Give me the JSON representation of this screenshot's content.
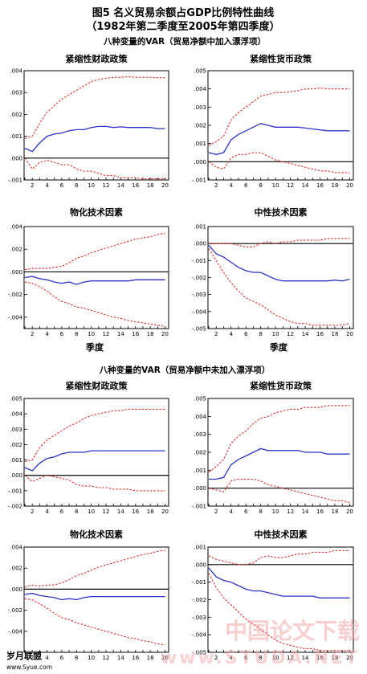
{
  "figure": {
    "title": "图5   名义贸易余额占GDP比例特性曲线",
    "subtitle": "（1982年第二季度至2005年第四季度）",
    "section1_title": "八种变量的VAR（贸易净额中加入漂浮项）",
    "section2_title": "八种变量的VAR（贸易净额中未加入漂浮项）",
    "xaxis_label": "季度",
    "watermark_left": "岁月联盟",
    "watermark_left_url": "www.Syue.com",
    "watermark_right": "中国论文下载",
    "watermark_right_url": "www.STUDA.NET"
  },
  "colors": {
    "response": "#2a34c8",
    "band": "#e0302a",
    "axis": "#000000",
    "zero": "#000000"
  },
  "chart_data": [
    {
      "type": "line",
      "title": "紧缩性财政政策",
      "xlabel": "",
      "x": [
        1,
        2,
        3,
        4,
        5,
        6,
        7,
        8,
        9,
        10,
        11,
        12,
        13,
        14,
        15,
        16,
        17,
        18,
        19,
        20
      ],
      "xticks": [
        "2",
        "4",
        "6",
        "8",
        "10",
        "12",
        "14",
        "16",
        "18",
        "20"
      ],
      "ylim": [
        -0.001,
        0.004
      ],
      "yticks": [
        ".004",
        ".003",
        ".002",
        ".001",
        ".000",
        "-.001"
      ],
      "series": [
        {
          "role": "response",
          "values": [
            0.00045,
            0.0003,
            0.0007,
            0.001,
            0.0011,
            0.00115,
            0.00125,
            0.0013,
            0.0013,
            0.0014,
            0.00145,
            0.00145,
            0.0014,
            0.00143,
            0.0014,
            0.0014,
            0.0014,
            0.0014,
            0.00135,
            0.00135
          ]
        },
        {
          "role": "upper",
          "values": [
            0.0009,
            0.001,
            0.0016,
            0.0021,
            0.0024,
            0.0027,
            0.0029,
            0.0031,
            0.0033,
            0.0035,
            0.0036,
            0.00365,
            0.0037,
            0.0037,
            0.00372,
            0.0037,
            0.0037,
            0.0037,
            0.00368,
            0.00368
          ]
        },
        {
          "role": "lower",
          "values": [
            0.0,
            -0.0005,
            -0.0002,
            -0.0001,
            -0.0002,
            -0.0003,
            -0.0003,
            -0.0005,
            -0.0006,
            -0.0006,
            -0.0007,
            -0.0008,
            -0.0008,
            -0.0009,
            -0.0009,
            -0.0009,
            -0.00095,
            -0.00095,
            -0.00095,
            -0.00095
          ]
        }
      ]
    },
    {
      "type": "line",
      "title": "紧缩性货币政策",
      "xlabel": "",
      "x": [
        1,
        2,
        3,
        4,
        5,
        6,
        7,
        8,
        9,
        10,
        11,
        12,
        13,
        14,
        15,
        16,
        17,
        18,
        19,
        20
      ],
      "xticks": [
        "2",
        "4",
        "6",
        "8",
        "10",
        "12",
        "14",
        "16",
        "18",
        "20"
      ],
      "ylim": [
        -0.001,
        0.005
      ],
      "yticks": [
        ".005",
        ".004",
        ".003",
        ".002",
        ".001",
        ".000",
        "-.001"
      ],
      "series": [
        {
          "role": "response",
          "values": [
            0.0005,
            0.0004,
            0.0005,
            0.0012,
            0.0015,
            0.0017,
            0.0019,
            0.0021,
            0.002,
            0.0019,
            0.0019,
            0.0019,
            0.0019,
            0.00185,
            0.0018,
            0.00175,
            0.0017,
            0.0017,
            0.0017,
            0.0017
          ]
        },
        {
          "role": "upper",
          "values": [
            0.0009,
            0.0011,
            0.0014,
            0.0023,
            0.0027,
            0.003,
            0.0033,
            0.0036,
            0.0037,
            0.0038,
            0.0038,
            0.00385,
            0.0039,
            0.004,
            0.004,
            0.00405,
            0.004,
            0.004,
            0.004,
            0.004
          ]
        },
        {
          "role": "lower",
          "values": [
            0.0,
            -0.0003,
            -0.0004,
            0.0002,
            0.0004,
            0.0004,
            0.0005,
            0.0005,
            0.0003,
            0.0001,
            0.0,
            -0.0001,
            -0.0002,
            -0.0003,
            -0.0004,
            -0.0005,
            -0.0005,
            -0.0006,
            -0.0006,
            -0.0006
          ]
        }
      ]
    },
    {
      "type": "line",
      "title": "物化技术因素",
      "xlabel": "季度",
      "x": [
        1,
        2,
        3,
        4,
        5,
        6,
        7,
        8,
        9,
        10,
        11,
        12,
        13,
        14,
        15,
        16,
        17,
        18,
        19,
        20
      ],
      "xticks": [
        "2",
        "4",
        "6",
        "8",
        "10",
        "12",
        "14",
        "16",
        "18",
        "20"
      ],
      "ylim": [
        -0.005,
        0.004
      ],
      "yticks": [
        ".004",
        ".002",
        ".000",
        "-.002",
        "-.004"
      ],
      "series": [
        {
          "role": "response",
          "values": [
            -0.0005,
            -0.0004,
            -0.0006,
            -0.0007,
            -0.0009,
            -0.001,
            -0.0009,
            -0.0011,
            -0.0009,
            -0.0008,
            -0.0008,
            -0.0008,
            -0.0008,
            -0.0008,
            -0.0008,
            -0.0007,
            -0.0007,
            -0.0007,
            -0.0007,
            -0.0007
          ]
        },
        {
          "role": "upper",
          "values": [
            0.0002,
            0.0003,
            0.0003,
            0.0003,
            0.0004,
            0.0005,
            0.0008,
            0.0012,
            0.0014,
            0.0017,
            0.0019,
            0.0021,
            0.0023,
            0.0025,
            0.0027,
            0.0029,
            0.003,
            0.0031,
            0.0033,
            0.0034
          ]
        },
        {
          "role": "lower",
          "values": [
            -0.0009,
            -0.001,
            -0.0013,
            -0.0017,
            -0.0022,
            -0.0026,
            -0.0028,
            -0.0031,
            -0.0032,
            -0.0034,
            -0.0036,
            -0.0038,
            -0.004,
            -0.0041,
            -0.0043,
            -0.0044,
            -0.0045,
            -0.0046,
            -0.0047,
            -0.0048
          ]
        }
      ]
    },
    {
      "type": "line",
      "title": "中性技术因素",
      "xlabel": "季度",
      "x": [
        1,
        2,
        3,
        4,
        5,
        6,
        7,
        8,
        9,
        10,
        11,
        12,
        13,
        14,
        15,
        16,
        17,
        18,
        19,
        20
      ],
      "xticks": [
        "2",
        "4",
        "6",
        "8",
        "10",
        "12",
        "14",
        "16",
        "18",
        "20"
      ],
      "ylim": [
        -0.005,
        0.001
      ],
      "yticks": [
        ".001",
        ".000",
        "-.001",
        "-.002",
        "-.003",
        "-.004",
        "-.005"
      ],
      "series": [
        {
          "role": "response",
          "values": [
            -0.0001,
            -0.0006,
            -0.0008,
            -0.0011,
            -0.0014,
            -0.0016,
            -0.0017,
            -0.0017,
            -0.0019,
            -0.0021,
            -0.0022,
            -0.0022,
            -0.0022,
            -0.0022,
            -0.0022,
            -0.0022,
            -0.0022,
            -0.00215,
            -0.0022,
            -0.0021
          ]
        },
        {
          "role": "upper",
          "values": [
            0.0,
            0.0,
            0.0,
            0.0,
            -0.0001,
            -0.0002,
            -0.0002,
            0.0,
            0.0001,
            0.0,
            0.0001,
            0.0001,
            0.0002,
            0.0002,
            0.0002,
            0.0002,
            0.0003,
            0.0003,
            0.0003,
            0.0003
          ]
        },
        {
          "role": "lower",
          "values": [
            -0.0003,
            -0.001,
            -0.0017,
            -0.0023,
            -0.0028,
            -0.0032,
            -0.0034,
            -0.0036,
            -0.0039,
            -0.0042,
            -0.0044,
            -0.0046,
            -0.0047,
            -0.0047,
            -0.0048,
            -0.0048,
            -0.0048,
            -0.0048,
            -0.0048,
            -0.0047
          ]
        }
      ]
    },
    {
      "type": "line",
      "title": "紧缩性财政政策",
      "xlabel": "",
      "x": [
        1,
        2,
        3,
        4,
        5,
        6,
        7,
        8,
        9,
        10,
        11,
        12,
        13,
        14,
        15,
        16,
        17,
        18,
        19,
        20
      ],
      "xticks": [
        "2",
        "4",
        "6",
        "8",
        "10",
        "12",
        "14",
        "16",
        "18",
        "20"
      ],
      "ylim": [
        -0.002,
        0.005
      ],
      "yticks": [
        ".005",
        ".004",
        ".003",
        ".002",
        ".001",
        ".000",
        "-.001",
        "-.002"
      ],
      "series": [
        {
          "role": "response",
          "values": [
            0.0005,
            0.0003,
            0.0008,
            0.0011,
            0.0012,
            0.0014,
            0.0015,
            0.0015,
            0.0015,
            0.0016,
            0.0016,
            0.0016,
            0.0016,
            0.0016,
            0.0016,
            0.0016,
            0.0016,
            0.0016,
            0.0016,
            0.0016
          ]
        },
        {
          "role": "upper",
          "values": [
            0.0009,
            0.001,
            0.0018,
            0.0023,
            0.0026,
            0.0029,
            0.0032,
            0.0034,
            0.0037,
            0.0039,
            0.004,
            0.0041,
            0.0042,
            0.0042,
            0.0043,
            0.0043,
            0.0043,
            0.0043,
            0.0043,
            0.0043
          ]
        },
        {
          "role": "lower",
          "values": [
            0.0,
            -0.0004,
            -0.0002,
            0.0,
            -0.0001,
            -0.0002,
            -0.0003,
            -0.0006,
            -0.0007,
            -0.0007,
            -0.0008,
            -0.0008,
            -0.0009,
            -0.0009,
            -0.0009,
            -0.001,
            -0.001,
            -0.001,
            -0.001,
            -0.001
          ]
        }
      ]
    },
    {
      "type": "line",
      "title": "紧缩性货币政策",
      "xlabel": "",
      "x": [
        1,
        2,
        3,
        4,
        5,
        6,
        7,
        8,
        9,
        10,
        11,
        12,
        13,
        14,
        15,
        16,
        17,
        18,
        19,
        20
      ],
      "xticks": [
        "2",
        "4",
        "6",
        "8",
        "10",
        "12",
        "14",
        "16",
        "18",
        "20"
      ],
      "ylim": [
        -0.001,
        0.005
      ],
      "yticks": [
        ".005",
        ".004",
        ".003",
        ".002",
        ".001",
        ".000",
        "-.001"
      ],
      "series": [
        {
          "role": "response",
          "values": [
            0.0005,
            0.0005,
            0.0006,
            0.0013,
            0.0016,
            0.0018,
            0.002,
            0.0022,
            0.0021,
            0.0021,
            0.0021,
            0.0021,
            0.0021,
            0.002,
            0.002,
            0.002,
            0.0019,
            0.0019,
            0.0019,
            0.0019
          ]
        },
        {
          "role": "upper",
          "values": [
            0.0009,
            0.0012,
            0.0016,
            0.0025,
            0.0029,
            0.0032,
            0.0036,
            0.0039,
            0.004,
            0.0042,
            0.0043,
            0.0044,
            0.0044,
            0.0045,
            0.0045,
            0.0045,
            0.0046,
            0.0046,
            0.0046,
            0.0046
          ]
        },
        {
          "role": "lower",
          "values": [
            0.0,
            -0.0001,
            -0.0002,
            0.0004,
            0.0005,
            0.0005,
            0.0005,
            0.0004,
            0.0002,
            0.0001,
            0.0,
            -0.0001,
            -0.0002,
            -0.0003,
            -0.0004,
            -0.0005,
            -0.0006,
            -0.0007,
            -0.0007,
            -0.0008
          ]
        }
      ]
    },
    {
      "type": "line",
      "title": "物化技术因素",
      "xlabel": "",
      "x": [
        1,
        2,
        3,
        4,
        5,
        6,
        7,
        8,
        9,
        10,
        11,
        12,
        13,
        14,
        15,
        16,
        17,
        18,
        19,
        20
      ],
      "xticks": [
        "2",
        "4",
        "6",
        "8",
        "10",
        "12",
        "14",
        "16",
        "18",
        "20"
      ],
      "ylim": [
        -0.006,
        0.004
      ],
      "yticks": [
        ".004",
        ".002",
        ".000",
        "-.002",
        "-.004"
      ],
      "series": [
        {
          "role": "response",
          "values": [
            -0.0005,
            -0.0004,
            -0.0006,
            -0.0007,
            -0.0008,
            -0.001,
            -0.0009,
            -0.001,
            -0.0008,
            -0.0007,
            -0.0007,
            -0.0007,
            -0.0007,
            -0.0007,
            -0.0007,
            -0.0007,
            -0.0007,
            -0.0007,
            -0.0007,
            -0.0007
          ]
        },
        {
          "role": "upper",
          "values": [
            0.0002,
            0.0004,
            0.0003,
            0.0004,
            0.0004,
            0.0006,
            0.0009,
            0.0013,
            0.0015,
            0.0018,
            0.0021,
            0.0023,
            0.0025,
            0.0027,
            0.0029,
            0.0031,
            0.0033,
            0.0034,
            0.0036,
            0.0037
          ]
        },
        {
          "role": "lower",
          "values": [
            -0.0009,
            -0.001,
            -0.0014,
            -0.0018,
            -0.0023,
            -0.0027,
            -0.0029,
            -0.0032,
            -0.0034,
            -0.0036,
            -0.0038,
            -0.004,
            -0.0042,
            -0.0044,
            -0.0046,
            -0.0047,
            -0.0049,
            -0.005,
            -0.0052,
            -0.0053
          ]
        }
      ]
    },
    {
      "type": "line",
      "title": "中性技术因素",
      "xlabel": "",
      "x": [
        1,
        2,
        3,
        4,
        5,
        6,
        7,
        8,
        9,
        10,
        11,
        12,
        13,
        14,
        15,
        16,
        17,
        18,
        19,
        20
      ],
      "xticks": [
        "2",
        "4",
        "6",
        "8",
        "10",
        "12",
        "14",
        "16",
        "18",
        "20"
      ],
      "ylim": [
        -0.005,
        0.001
      ],
      "yticks": [
        ".001",
        ".000",
        "-.001",
        "-.002",
        "-.003",
        "-.004",
        "-.005"
      ],
      "series": [
        {
          "role": "response",
          "values": [
            -0.0002,
            -0.0007,
            -0.0009,
            -0.001,
            -0.0012,
            -0.0014,
            -0.0015,
            -0.0015,
            -0.0016,
            -0.0017,
            -0.0018,
            -0.0018,
            -0.0018,
            -0.0018,
            -0.0018,
            -0.0019,
            -0.0019,
            -0.0019,
            -0.0019,
            -0.0019
          ]
        },
        {
          "role": "upper",
          "values": [
            0.0005,
            0.0003,
            0.0002,
            0.0001,
            0.0,
            0.0,
            0.0001,
            0.0004,
            0.0005,
            0.0004,
            0.0004,
            0.0005,
            0.0006,
            0.0006,
            0.0007,
            0.0007,
            0.0007,
            0.0008,
            0.0008,
            0.0008
          ]
        },
        {
          "role": "lower",
          "values": [
            -0.0005,
            -0.0013,
            -0.0019,
            -0.0023,
            -0.0027,
            -0.0031,
            -0.0034,
            -0.0037,
            -0.004,
            -0.0043,
            -0.0045,
            -0.0046,
            -0.0047,
            -0.0048,
            -0.0048,
            -0.0049,
            -0.0049,
            -0.0049,
            -0.0049,
            -0.0049
          ]
        }
      ]
    }
  ]
}
